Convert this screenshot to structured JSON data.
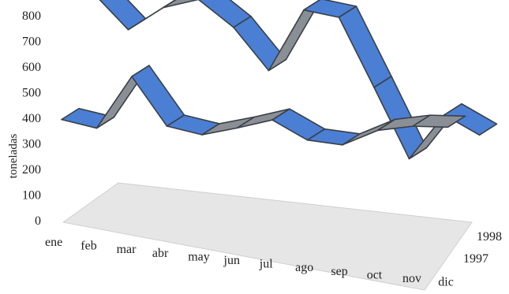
{
  "chart_data": {
    "type": "line",
    "style": "3d-ribbon",
    "categories": [
      "ene",
      "feb",
      "mar",
      "abr",
      "may",
      "jun",
      "jul",
      "ago",
      "sep",
      "oct",
      "nov",
      "dic"
    ],
    "series": [
      {
        "name": "1997",
        "values": [
          395,
          370,
          580,
          395,
          370,
          405,
          445,
          375,
          365,
          430,
          455,
          460
        ]
      },
      {
        "name": "1998",
        "values": [
          760,
          625,
          720,
          760,
          660,
          500,
          745,
          725,
          460,
          190,
          370,
          300
        ]
      }
    ],
    "ylabel": "toneladas",
    "ylim": [
      0,
      800
    ],
    "yticks": [
      0,
      100,
      200,
      300,
      400,
      500,
      600,
      700,
      800
    ],
    "depth_labels": [
      "1998",
      "1997"
    ],
    "colors": {
      "ribbon_top": "#4a7fd4",
      "ribbon_side": "#8a8f96",
      "ribbon_outline": "#3a3f47",
      "floor": "#e6e6e6"
    }
  }
}
